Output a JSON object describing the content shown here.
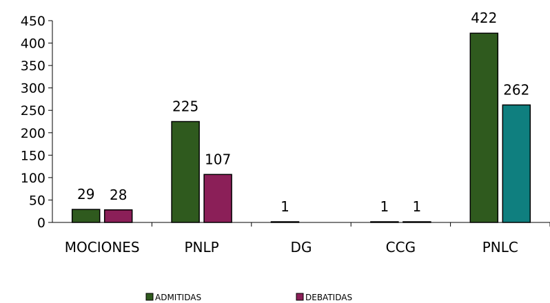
{
  "chart_data": {
    "type": "bar",
    "categories": [
      "MOCIONES",
      "PNLP",
      "DG",
      "CCG",
      "PNLC"
    ],
    "series": [
      {
        "name": "ADMITIDAS",
        "values": [
          29,
          225,
          1,
          1,
          422
        ],
        "color": "#2f5a1e"
      },
      {
        "name": "DEBATIDAS",
        "values": [
          28,
          107,
          null,
          1,
          262
        ],
        "color": "#8b1f58",
        "point_colors": {
          "4": "#0f7f7f"
        }
      }
    ],
    "data_labels": {
      "ADMITIDAS": [
        "29",
        "225",
        "1",
        "1",
        "422"
      ],
      "DEBATIDAS": [
        "28",
        "107",
        "",
        "1",
        "262"
      ]
    },
    "yticks": [
      0,
      50,
      100,
      150,
      200,
      250,
      300,
      350,
      400,
      450
    ],
    "ylim": [
      0,
      450
    ],
    "title": "",
    "xlabel": "",
    "ylabel": "",
    "grid": false,
    "legend": "bottom"
  }
}
